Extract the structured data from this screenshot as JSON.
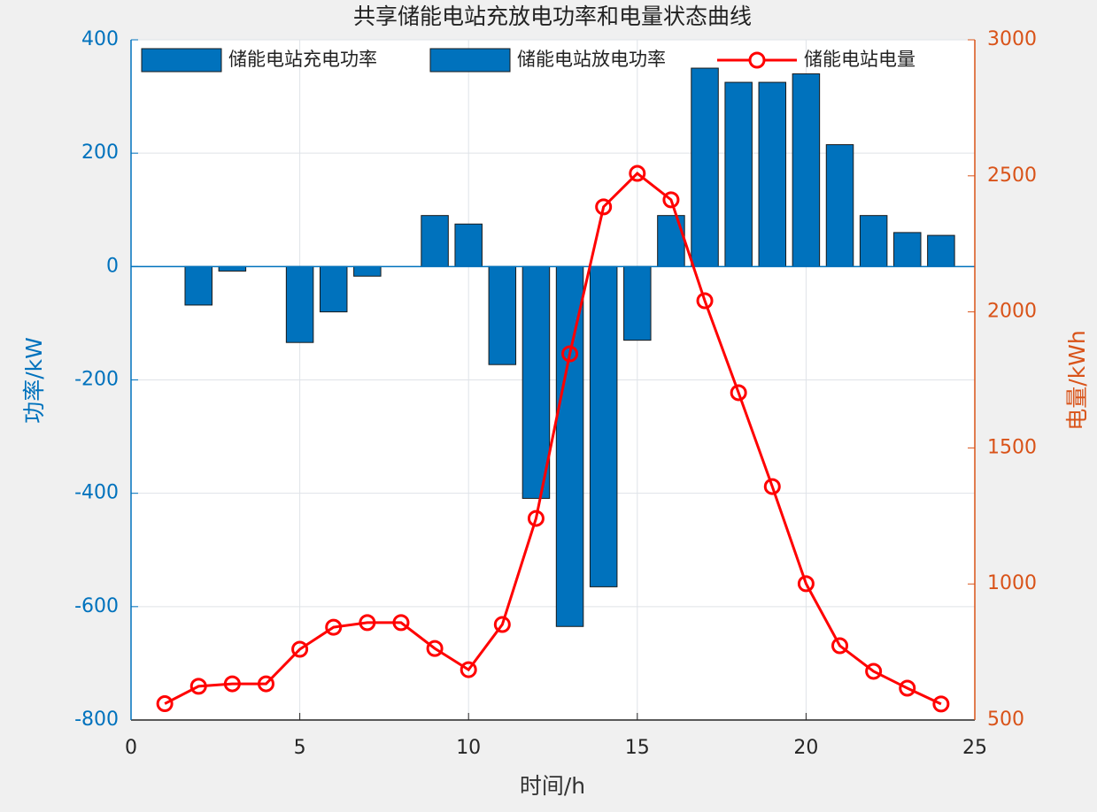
{
  "chart_data": {
    "type": "bar-line",
    "title": "共享储能电站充放电功率和电量状态曲线",
    "xlabel": "时间/h",
    "ylabel": "功率/kW",
    "y2label": "电量/kWh",
    "x": [
      1,
      2,
      3,
      4,
      5,
      6,
      7,
      8,
      9,
      10,
      11,
      12,
      13,
      14,
      15,
      16,
      17,
      18,
      19,
      20,
      21,
      22,
      23,
      24
    ],
    "series": [
      {
        "name": "储能电站充电功率",
        "type": "bar",
        "color": "#0072bd",
        "values": [
          0,
          -68,
          -8,
          0,
          -134,
          -80,
          -17,
          0,
          null,
          null,
          -173,
          -409,
          -635,
          -565,
          -130,
          null,
          null,
          null,
          null,
          null,
          null,
          null,
          null,
          null
        ]
      },
      {
        "name": "储能电站放电功率",
        "type": "bar",
        "color": "#0072bd",
        "values": [
          null,
          null,
          null,
          null,
          null,
          null,
          null,
          null,
          90,
          75,
          null,
          null,
          null,
          null,
          null,
          90,
          350,
          325,
          325,
          340,
          215,
          90,
          60,
          55
        ]
      },
      {
        "name": "储能电站电量",
        "type": "line",
        "axis": "y2",
        "color": "#ff0000",
        "values": [
          560,
          624,
          633,
          633,
          760,
          841,
          858,
          858,
          763,
          685,
          851,
          1241,
          1846,
          2386,
          2509,
          2412,
          2041,
          1703,
          1358,
          1001,
          773,
          679,
          617,
          559
        ]
      }
    ],
    "xlim": [
      0,
      25
    ],
    "xticks": [
      0,
      5,
      10,
      15,
      20,
      25
    ],
    "ylim": [
      -800,
      400
    ],
    "yticks": [
      -800,
      -600,
      -400,
      -200,
      0,
      200,
      400
    ],
    "y2lim": [
      500,
      3000
    ],
    "y2ticks": [
      500,
      1000,
      1500,
      2000,
      2500,
      3000
    ],
    "grid": true,
    "legend": "north",
    "left_axis_color": "#0072bd",
    "right_axis_color": "#d95319"
  }
}
